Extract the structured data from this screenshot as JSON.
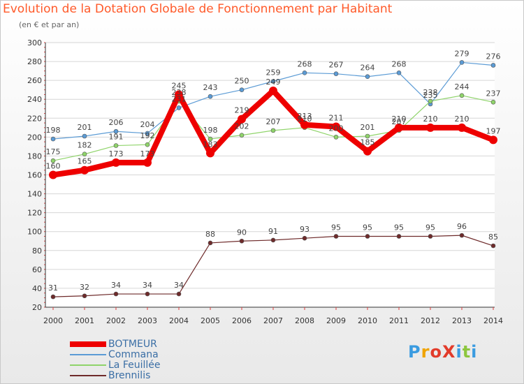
{
  "header": {
    "title": "Evolution de la Dotation Globale de Fonctionnement par Habitant",
    "subtitle": "(en € et par an)"
  },
  "logo": {
    "text": "ProXiti",
    "colors": [
      "#3a9be0",
      "#f0a400",
      "#e23b2a",
      "#e23b2a",
      "#3a9be0",
      "#8cc63e",
      "#3a9be0"
    ]
  },
  "chart_data": {
    "type": "line",
    "x": [
      2000,
      2001,
      2002,
      2003,
      2004,
      2005,
      2006,
      2007,
      2008,
      2009,
      2010,
      2011,
      2012,
      2013,
      2014
    ],
    "ylim": [
      20,
      300
    ],
    "yticks": [
      20,
      40,
      60,
      80,
      100,
      120,
      140,
      160,
      180,
      200,
      220,
      240,
      260,
      280,
      300
    ],
    "grid": "horizontal",
    "legend_position": "bottom-left",
    "series": [
      {
        "name": "BOTMEUR",
        "color": "#ee0000",
        "values": [
          160,
          165,
          173,
          173,
          245,
          183,
          219,
          249,
          213,
          211,
          185,
          210,
          210,
          210,
          197
        ]
      },
      {
        "name": "Commana",
        "color": "#5b9bd5",
        "values": [
          198,
          201,
          206,
          204,
          231,
          243,
          250,
          259,
          268,
          267,
          264,
          268,
          235,
          279,
          276
        ]
      },
      {
        "name": "La Feuillée",
        "color": "#8fd46a",
        "values": [
          175,
          182,
          191,
          192,
          238,
          198,
          202,
          207,
          210,
          200,
          201,
          207,
          238,
          244,
          237
        ]
      },
      {
        "name": "Brennilis",
        "color": "#6e2a2a",
        "values": [
          31,
          32,
          34,
          34,
          34,
          88,
          90,
          91,
          93,
          95,
          95,
          95,
          95,
          96,
          85
        ]
      }
    ]
  }
}
